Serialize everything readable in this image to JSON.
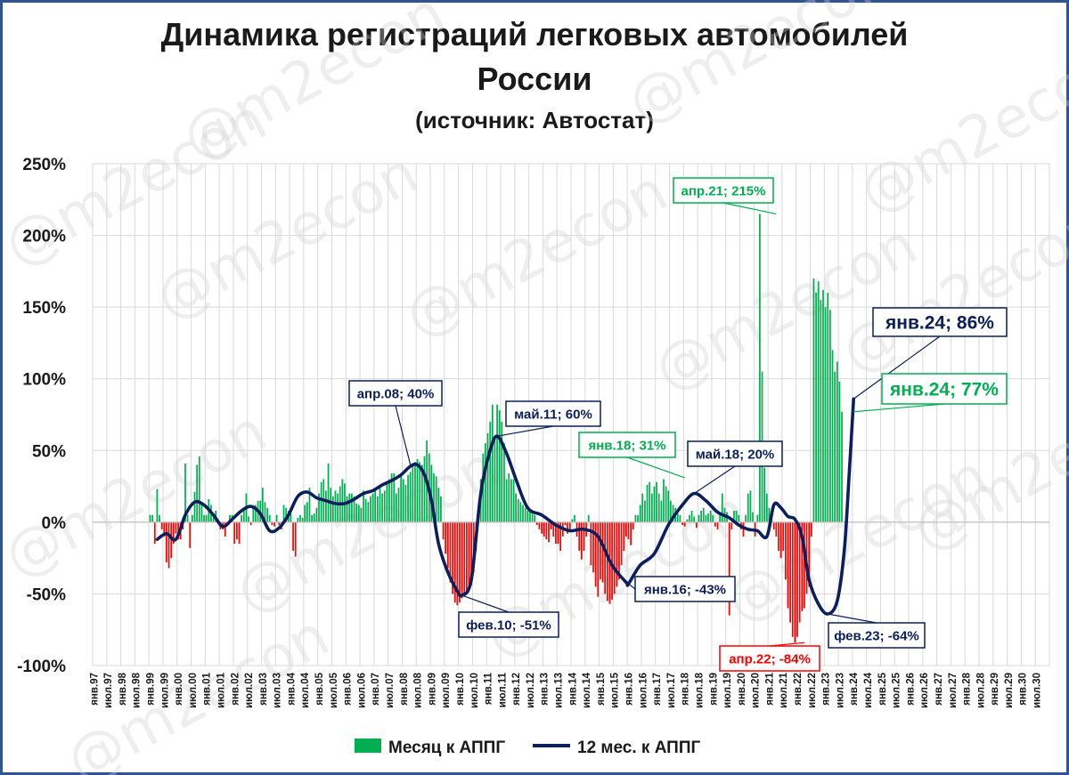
{
  "header": {
    "title_line1": "Динамика регистраций легковых автомобилей",
    "title_line2": "России",
    "subtitle": "(источник: Автостат)"
  },
  "watermark": "@m2econ",
  "colors": {
    "positive_bar": "#00b050",
    "negative_bar": "#ff0000",
    "line": "#0b1f5c",
    "frame": "#2f5496"
  },
  "chart_data": {
    "type": "bar",
    "title": "Динамика регистраций легковых автомобилей России",
    "subtitle": "(источник: Автостат)",
    "xlabel": "",
    "ylabel": "",
    "ylim": [
      -1.0,
      2.5
    ],
    "y_ticks": [
      -1.0,
      -0.5,
      0,
      0.5,
      1.0,
      1.5,
      2.0,
      2.5
    ],
    "y_tick_labels": [
      "-100%",
      "-50%",
      "0%",
      "50%",
      "100%",
      "150%",
      "200%",
      "250%"
    ],
    "grid": true,
    "legend_position": "bottom",
    "x_range": [
      "1997-01",
      "2030-12"
    ],
    "x_tick_labels": [
      "янв.97",
      "июл.97",
      "янв.98",
      "июл.98",
      "янв.99",
      "июл.99",
      "янв.00",
      "июл.00",
      "янв.01",
      "июл.01",
      "янв.02",
      "июл.02",
      "янв.03",
      "июл.03",
      "янв.04",
      "июл.04",
      "янв.05",
      "июл.05",
      "янв.06",
      "июл.06",
      "янв.07",
      "июл.07",
      "янв.08",
      "июл.08",
      "янв.09",
      "июл.09",
      "янв.10",
      "июл.10",
      "янв.11",
      "июл.11",
      "янв.12",
      "июл.12",
      "янв.13",
      "июл.13",
      "янв.14",
      "июл.14",
      "янв.15",
      "июл.15",
      "янв.16",
      "июл.16",
      "янв.17",
      "июл.17",
      "янв.18",
      "июл.18",
      "янв.19",
      "июл.19",
      "янв.20",
      "июл.20",
      "янв.21",
      "июл.21",
      "янв.22",
      "июл.22",
      "янв.23",
      "июл.23",
      "янв.24",
      "июл.24",
      "янв.25",
      "июл.25",
      "янв.26",
      "июл.26",
      "янв.27",
      "июл.27",
      "янв.28",
      "июл.28",
      "янв.29",
      "июл.29",
      "янв.30",
      "июл.30"
    ],
    "series": [
      {
        "name": "Месяц к АППГ",
        "kind": "bar",
        "start": "1997-01",
        "values": [
          0,
          0,
          0,
          0,
          0,
          0,
          0,
          0,
          0,
          0,
          0,
          0,
          0,
          0,
          0,
          0,
          0,
          0,
          0,
          0,
          0,
          0,
          0,
          0,
          0.05,
          0.05,
          -0.15,
          0.23,
          0.05,
          -0.05,
          -0.1,
          -0.28,
          -0.32,
          -0.25,
          -0.15,
          -0.08,
          -0.12,
          -0.12,
          -0.05,
          0.41,
          0.05,
          -0.18,
          0.05,
          0.21,
          0.4,
          0.46,
          0.12,
          0.05,
          0.05,
          0.16,
          0.12,
          0.05,
          0.08,
          0.02,
          -0.05,
          -0.05,
          -0.1,
          -0.02,
          0.05,
          0.05,
          -0.15,
          -0.12,
          -0.15,
          0.05,
          0.08,
          0.2,
          0.04,
          -0.02,
          0.12,
          0.12,
          0.15,
          0.15,
          0.24,
          0.14,
          0.1,
          0.05,
          -0.02,
          -0.03,
          0.05,
          -0.02,
          -0.05,
          0.12,
          0.1,
          0.08,
          0.06,
          -0.2,
          -0.24,
          0.03,
          0.05,
          0.03,
          0.12,
          0.14,
          0.24,
          0.05,
          0.06,
          0.1,
          0.2,
          0.28,
          0.3,
          0.22,
          0.41,
          0.24,
          0.18,
          0.22,
          0.2,
          0.25,
          0.3,
          0.27,
          0.18,
          0.2,
          0.2,
          0.18,
          0.13,
          0.12,
          0.1,
          0.22,
          0.16,
          0.14,
          0.18,
          0.2,
          0.22,
          0.18,
          0.24,
          0.2,
          0.22,
          0.28,
          0.3,
          0.34,
          0.34,
          0.2,
          0.24,
          0.32,
          0.3,
          0.26,
          0.33,
          0.35,
          0.4,
          0.42,
          0.44,
          0.42,
          0.4,
          0.46,
          0.57,
          0.48,
          0.4,
          0.34,
          0.32,
          0.24,
          0.18,
          -0.12,
          -0.22,
          -0.32,
          -0.42,
          -0.5,
          -0.56,
          -0.58,
          -0.56,
          -0.53,
          -0.52,
          -0.5,
          -0.47,
          -0.44,
          -0.35,
          -0.2,
          0.1,
          0.3,
          0.48,
          0.55,
          0.62,
          0.7,
          0.82,
          0.6,
          0.82,
          0.78,
          0.7,
          0.55,
          0.3,
          0.34,
          0.3,
          0.3,
          0.2,
          0.16,
          0.14,
          0.12,
          0.1,
          0.08,
          0.07,
          0.06,
          0.05,
          -0.02,
          -0.05,
          -0.08,
          -0.1,
          -0.12,
          -0.14,
          -0.05,
          -0.1,
          -0.15,
          -0.15,
          -0.2,
          -0.1,
          -0.02,
          -0.08,
          -0.05,
          0.02,
          0.05,
          -0.1,
          -0.2,
          -0.26,
          -0.2,
          -0.1,
          0.05,
          -0.3,
          -0.35,
          -0.45,
          -0.52,
          -0.4,
          -0.42,
          -0.5,
          -0.55,
          -0.57,
          -0.54,
          -0.5,
          -0.45,
          -0.4,
          -0.3,
          -0.2,
          -0.1,
          -0.12,
          -0.16,
          -0.05,
          0.05,
          0.05,
          0.12,
          0.2,
          0.15,
          0.26,
          0.28,
          0.2,
          0.25,
          0.28,
          0.2,
          0.15,
          0.3,
          0.25,
          0.22,
          0.15,
          0.12,
          0.1,
          0.06,
          0.05,
          -0.02,
          -0.03,
          0.02,
          0.05,
          0.08,
          0.04,
          -0.04,
          0.05,
          0.08,
          0.1,
          0.05,
          0.06,
          0.08,
          0.05,
          -0.03,
          -0.05,
          0.05,
          0.2,
          0.1,
          0.07,
          -0.65,
          -0.05,
          0.08,
          0.08,
          0.05,
          -0.05,
          -0.1,
          0.05,
          0.2,
          0.22,
          0.07,
          -0.1,
          0.05,
          2.15,
          1.05,
          0.38,
          0.2,
          0.1,
          0.05,
          -0.05,
          -0.1,
          -0.2,
          -0.25,
          -0.2,
          -0.4,
          -0.6,
          -0.7,
          -0.8,
          -0.84,
          -0.8,
          -0.7,
          -0.62,
          -0.6,
          -0.5,
          -0.45,
          -0.1,
          1.7,
          1.6,
          1.68,
          1.55,
          1.62,
          1.5,
          1.6,
          1.48,
          1.2,
          1.05,
          1.12,
          0.98,
          0.77
        ]
      },
      {
        "name": "12 мес. к АППГ",
        "kind": "line",
        "points": [
          [
            "1999-04",
            -0.12
          ],
          [
            "1999-08",
            -0.08
          ],
          [
            "1999-12",
            -0.12
          ],
          [
            "2000-04",
            0.05
          ],
          [
            "2000-08",
            0.14
          ],
          [
            "2000-12",
            0.12
          ],
          [
            "2001-04",
            0.05
          ],
          [
            "2001-08",
            -0.03
          ],
          [
            "2001-12",
            0.02
          ],
          [
            "2002-04",
            0.08
          ],
          [
            "2002-08",
            0.11
          ],
          [
            "2002-12",
            0.06
          ],
          [
            "2003-04",
            -0.06
          ],
          [
            "2003-08",
            -0.04
          ],
          [
            "2003-12",
            0.05
          ],
          [
            "2004-04",
            0.18
          ],
          [
            "2004-08",
            0.21
          ],
          [
            "2004-12",
            0.17
          ],
          [
            "2005-04",
            0.15
          ],
          [
            "2005-08",
            0.13
          ],
          [
            "2005-12",
            0.13
          ],
          [
            "2006-04",
            0.16
          ],
          [
            "2006-08",
            0.2
          ],
          [
            "2006-12",
            0.22
          ],
          [
            "2007-04",
            0.26
          ],
          [
            "2007-08",
            0.29
          ],
          [
            "2007-12",
            0.33
          ],
          [
            "2008-04",
            0.39
          ],
          [
            "2008-07",
            0.4
          ],
          [
            "2008-10",
            0.33
          ],
          [
            "2009-01",
            0.15
          ],
          [
            "2009-04",
            -0.15
          ],
          [
            "2009-08",
            -0.35
          ],
          [
            "2009-12",
            -0.48
          ],
          [
            "2010-02",
            -0.51
          ],
          [
            "2010-06",
            -0.4
          ],
          [
            "2010-10",
            0.2
          ],
          [
            "2011-02",
            0.5
          ],
          [
            "2011-05",
            0.6
          ],
          [
            "2011-09",
            0.48
          ],
          [
            "2012-01",
            0.3
          ],
          [
            "2012-06",
            0.1
          ],
          [
            "2012-12",
            0.05
          ],
          [
            "2013-06",
            -0.02
          ],
          [
            "2013-12",
            -0.06
          ],
          [
            "2014-06",
            -0.05
          ],
          [
            "2014-12",
            -0.1
          ],
          [
            "2015-06",
            -0.3
          ],
          [
            "2015-12",
            -0.42
          ],
          [
            "2016-01",
            -0.43
          ],
          [
            "2016-06",
            -0.3
          ],
          [
            "2016-12",
            -0.22
          ],
          [
            "2017-06",
            -0.02
          ],
          [
            "2017-12",
            0.12
          ],
          [
            "2018-05",
            0.2
          ],
          [
            "2018-10",
            0.15
          ],
          [
            "2019-03",
            0.07
          ],
          [
            "2019-08",
            0.03
          ],
          [
            "2019-12",
            -0.02
          ],
          [
            "2020-04",
            -0.05
          ],
          [
            "2020-08",
            -0.06
          ],
          [
            "2020-12",
            -0.1
          ],
          [
            "2021-03",
            0.12
          ],
          [
            "2021-06",
            0.1
          ],
          [
            "2021-09",
            0.04
          ],
          [
            "2021-12",
            0.02
          ],
          [
            "2022-03",
            -0.1
          ],
          [
            "2022-06",
            -0.4
          ],
          [
            "2022-10",
            -0.57
          ],
          [
            "2023-02",
            -0.64
          ],
          [
            "2023-06",
            -0.55
          ],
          [
            "2023-09",
            -0.2
          ],
          [
            "2023-11",
            0.3
          ],
          [
            "2024-01",
            0.86
          ]
        ]
      }
    ],
    "annotations": [
      {
        "text": "апр.08; 40%",
        "series": "12 мес. к АППГ",
        "color": "#0b1f5c"
      },
      {
        "text": "фев.10; -51%",
        "series": "12 мес. к АППГ",
        "color": "#0b1f5c"
      },
      {
        "text": "май.11; 60%",
        "series": "12 мес. к АППГ",
        "color": "#0b1f5c"
      },
      {
        "text": "янв.16; -43%",
        "series": "12 мес. к АППГ",
        "color": "#0b1f5c"
      },
      {
        "text": "май.18; 20%",
        "series": "12 мес. к АППГ",
        "color": "#0b1f5c"
      },
      {
        "text": "фев.23; -64%",
        "series": "12 мес. к АППГ",
        "color": "#0b1f5c"
      },
      {
        "text": "янв.24; 86%",
        "series": "12 мес. к АППГ",
        "color": "#0b1f5c"
      },
      {
        "text": "янв.18; 31%",
        "series": "Месяц к АППГ",
        "color": "#00b050"
      },
      {
        "text": "апр.21; 215%",
        "series": "Месяц к АППГ",
        "color": "#00b050"
      },
      {
        "text": "апр.22; -84%",
        "series": "Месяц к АППГ",
        "color": "#ff0000"
      },
      {
        "text": "янв.24; 77%",
        "series": "Месяц к АППГ",
        "color": "#00b050"
      }
    ]
  }
}
